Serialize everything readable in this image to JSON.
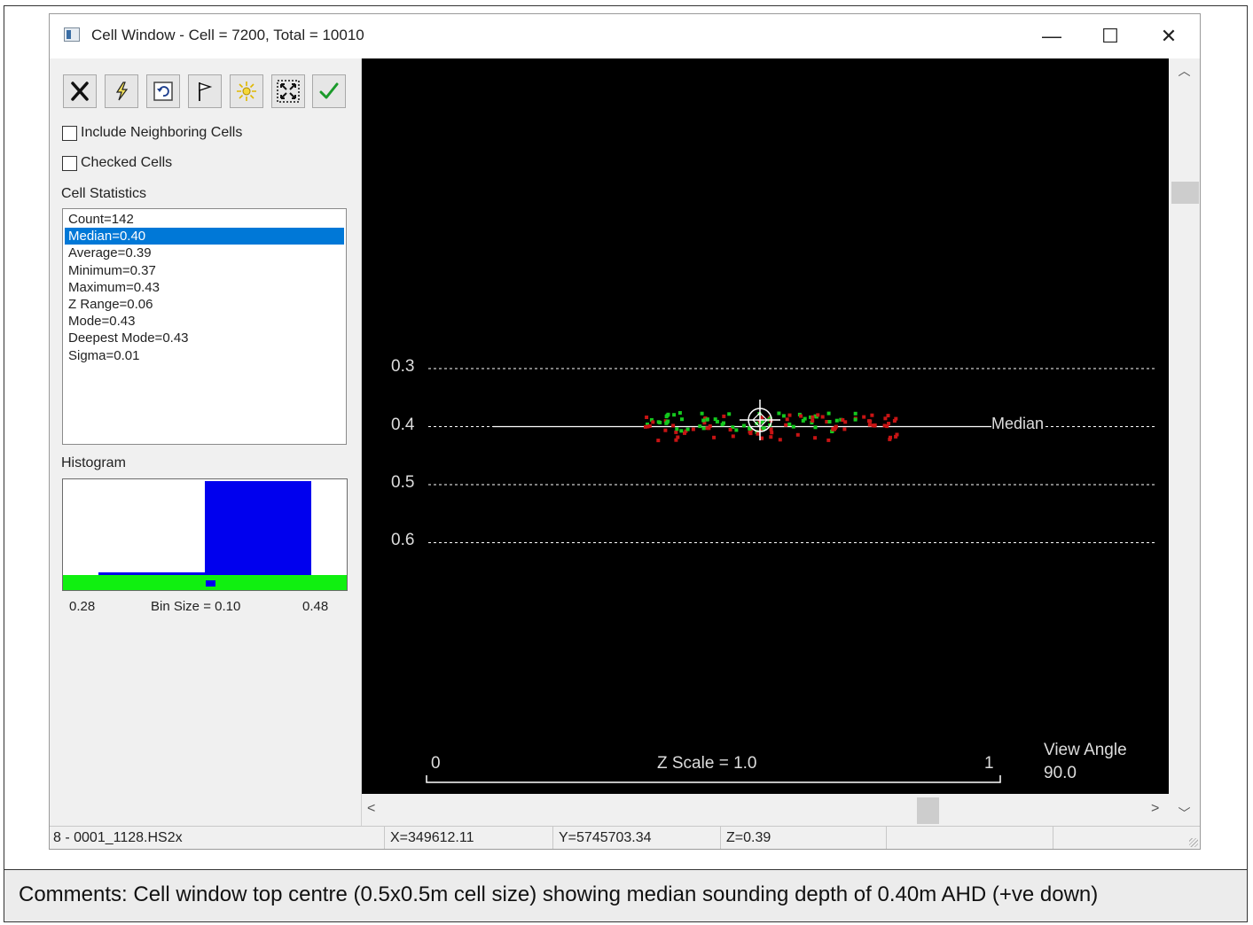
{
  "window": {
    "title": "Cell Window - Cell = 7200, Total = 10010",
    "controls": {
      "minimize": "—",
      "maximize": "☐",
      "close": "✕"
    }
  },
  "toolbar": {
    "icons": [
      "tools-icon",
      "lightning-icon",
      "undo-icon",
      "flag-icon",
      "sun-icon",
      "fit-view-icon",
      "checkmark-icon"
    ]
  },
  "options": {
    "include_neighboring": {
      "label": "Include Neighboring Cells",
      "checked": false
    },
    "checked_cells": {
      "label": "Checked Cells",
      "checked": false
    }
  },
  "stats": {
    "label": "Cell Statistics",
    "items": [
      "Count=142",
      "Median=0.40",
      "Average=0.39",
      "Minimum=0.37",
      "Maximum=0.43",
      "Z Range=0.06",
      "Mode=0.43",
      "Deepest Mode=0.43",
      "Sigma=0.01"
    ],
    "selected_index": 1
  },
  "histogram": {
    "label": "Histogram",
    "min_label": "0.28",
    "bin_label": "Bin Size = 0.10",
    "max_label": "0.48",
    "bins": [
      {
        "from": 0.28,
        "to": 0.38,
        "count": 4
      },
      {
        "from": 0.38,
        "to": 0.48,
        "count": 138
      }
    ]
  },
  "plot": {
    "depth_labels": [
      "0.3",
      "0.4",
      "0.5",
      "0.6"
    ],
    "median_label": "Median",
    "median_value": 0.4,
    "scale": {
      "left": "0",
      "center": "Z Scale = 1.0",
      "right": "1"
    },
    "view_angle_label": "View Angle",
    "view_angle_value": "90.0",
    "colors": {
      "background": "#000000",
      "point_red": "#c81414",
      "point_green": "#14c81e",
      "grid": "#ffffff"
    }
  },
  "statusbar": {
    "file": "8 - 0001_1128.HS2x",
    "x": "X=349612.11",
    "y": "Y=5745703.34",
    "z": "Z=0.39"
  },
  "comments": "Comments: Cell window top centre (0.5x0.5m cell size) showing median sounding depth of 0.40m AHD (+ve down)"
}
